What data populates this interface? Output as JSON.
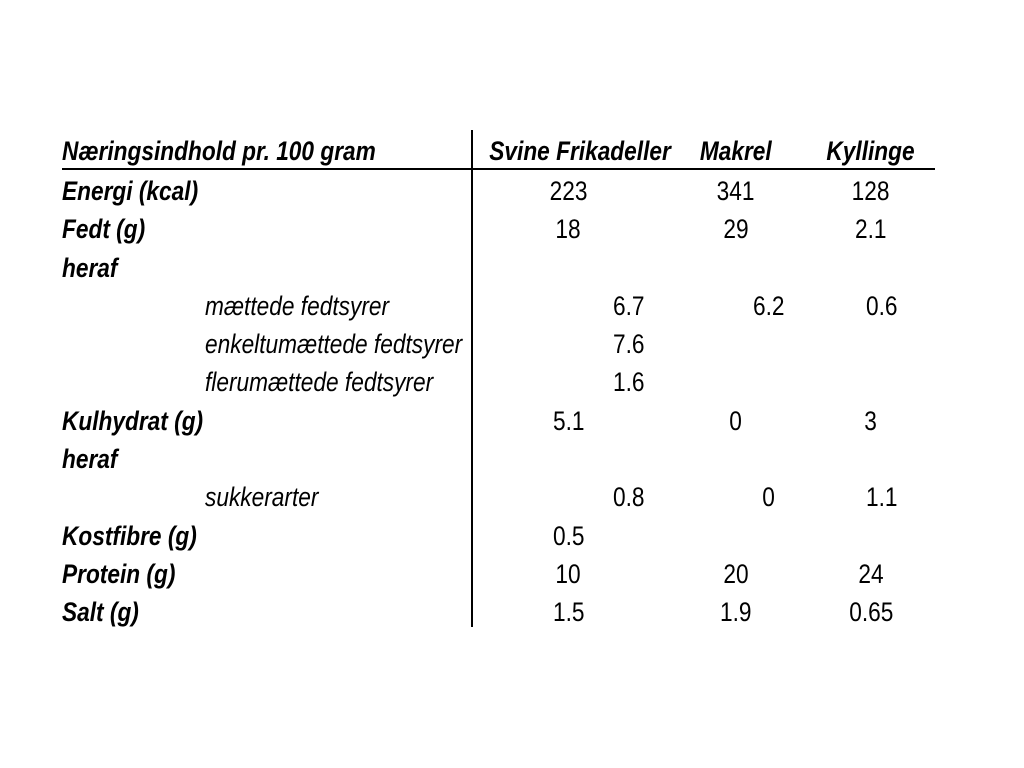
{
  "table": {
    "title_col_header": "Næringsindhold pr. 100 gram",
    "columns": [
      "Svine Frikadeller",
      "Makrel",
      "Kyllinge"
    ],
    "rows": [
      {
        "label": "Energi (kcal)",
        "indent": false,
        "values": [
          "223",
          "341",
          "128"
        ]
      },
      {
        "label": "Fedt (g)",
        "indent": false,
        "values": [
          "18",
          "29",
          "2.1"
        ]
      },
      {
        "label": "heraf",
        "indent": false,
        "values": [
          "",
          "",
          ""
        ]
      },
      {
        "label": "mættede fedtsyrer",
        "indent": true,
        "values": [
          "6.7",
          "6.2",
          "0.6"
        ]
      },
      {
        "label": "enkeltumættede fedtsyrer",
        "indent": true,
        "values": [
          "7.6",
          "",
          ""
        ]
      },
      {
        "label": "flerumættede fedtsyrer",
        "indent": true,
        "values": [
          "1.6",
          "",
          ""
        ]
      },
      {
        "label": "Kulhydrat (g)",
        "indent": false,
        "values": [
          "5.1",
          "0",
          "3"
        ]
      },
      {
        "label": "heraf",
        "indent": false,
        "values": [
          "",
          "",
          ""
        ]
      },
      {
        "label": "sukkerarter",
        "indent": true,
        "values": [
          "0.8",
          "0",
          "1.1"
        ]
      },
      {
        "label": "Kostfibre (g)",
        "indent": false,
        "values": [
          "0.5",
          "",
          ""
        ]
      },
      {
        "label": "Protein (g)",
        "indent": false,
        "values": [
          "10",
          "20",
          "24"
        ]
      },
      {
        "label": "Salt (g)",
        "indent": false,
        "values": [
          "1.5",
          "1.9",
          "0.65"
        ]
      }
    ],
    "text_color": "#000000",
    "rule_color": "#000000"
  }
}
